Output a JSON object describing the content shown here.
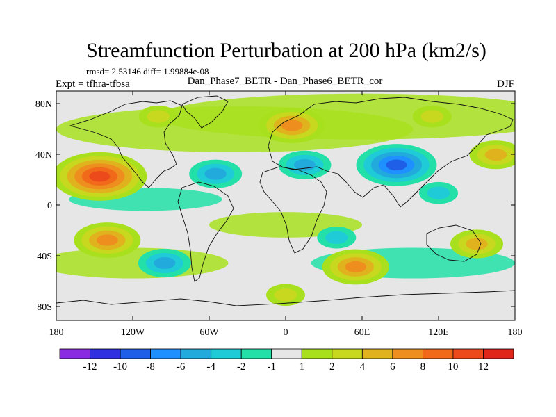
{
  "chart_data": {
    "type": "heatmap",
    "title": "Streamfunction Perturbation at 200 hPa (km2/s)",
    "stats": "rmsd= 2.53146 diff= 1.99884e-08",
    "experiment": "Expt = tfhra-tfbsa",
    "case": "Dan_Phase7_BETR - Dan_Phase6_BETR_cor",
    "season": "DJF",
    "xlabel": "",
    "ylabel": "",
    "x_range": [
      -180,
      180
    ],
    "y_range": [
      -90,
      90
    ],
    "x_ticks": [
      "180",
      "120W",
      "60W",
      "0",
      "60E",
      "120E",
      "180"
    ],
    "y_ticks": [
      "80N",
      "40N",
      "0",
      "40S",
      "80S"
    ],
    "colorbar": {
      "levels": [
        "-12",
        "-10",
        "-8",
        "-6",
        "-4",
        "-2",
        "-1",
        "1",
        "2",
        "4",
        "6",
        "8",
        "10",
        "12"
      ],
      "colors": [
        "#8a2be2",
        "#3030e0",
        "#1f5ee6",
        "#1e90ff",
        "#22aadd",
        "#1ecbd6",
        "#22e0a8",
        "#e6e6e6",
        "#a8e01e",
        "#c8d81e",
        "#e0b21e",
        "#ee8e1e",
        "#f06a1a",
        "#ec4a1a",
        "#e0261a"
      ]
    },
    "features": [
      {
        "name": "anomaly-pacific-north-high",
        "lon": -146,
        "lat": 23,
        "peak": 10
      },
      {
        "name": "anomaly-pacific-south-high",
        "lon": -140,
        "lat": -27,
        "peak": 6
      },
      {
        "name": "anomaly-asia-low",
        "lon": 87,
        "lat": 32,
        "peak": -8
      },
      {
        "name": "anomaly-europe-high",
        "lon": 5,
        "lat": 63,
        "peak": 6
      },
      {
        "name": "anomaly-south-indian-high",
        "lon": 55,
        "lat": -48,
        "peak": 6
      },
      {
        "name": "anomaly-med-low",
        "lon": 15,
        "lat": 32,
        "peak": -4
      },
      {
        "name": "anomaly-south-america-low",
        "lon": -95,
        "lat": -45,
        "peak": -4
      },
      {
        "name": "anomaly-atlantic-low",
        "lon": -55,
        "lat": 25,
        "peak": -4
      },
      {
        "name": "anomaly-east-pacific-high",
        "lon": 165,
        "lat": 40,
        "peak": 4
      },
      {
        "name": "anomaly-south-pacific-high",
        "lon": 150,
        "lat": -30,
        "peak": 4
      },
      {
        "name": "anomaly-north-america-high",
        "lon": -100,
        "lat": 70,
        "peak": 2
      },
      {
        "name": "anomaly-east-russia-high",
        "lon": 115,
        "lat": 70,
        "peak": 2
      },
      {
        "name": "anomaly-indian-ocean-low",
        "lon": 40,
        "lat": -25,
        "peak": -2
      },
      {
        "name": "anomaly-southern-ocean-high",
        "lon": 0,
        "lat": -70,
        "peak": 2
      },
      {
        "name": "anomaly-west-pacific-low",
        "lon": 120,
        "lat": 10,
        "peak": -2
      }
    ]
  }
}
